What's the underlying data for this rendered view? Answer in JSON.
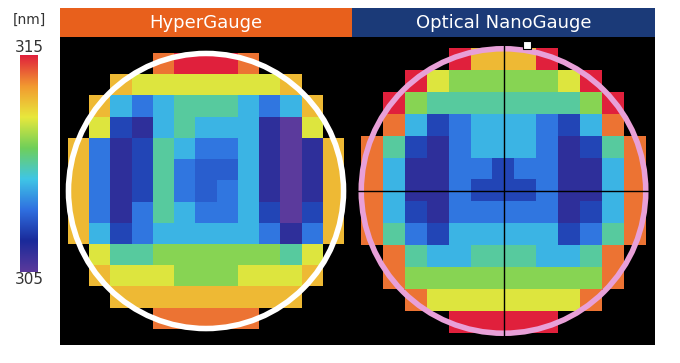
{
  "chart_data": [
    {
      "type": "heatmap",
      "title": "HyperGauge",
      "color": "#e8601c",
      "cells": [
        [
          null,
          null,
          null,
          null,
          314,
          315,
          315,
          315,
          314,
          null,
          null,
          null,
          null
        ],
        [
          null,
          null,
          313,
          312,
          312,
          312,
          312,
          312,
          312,
          312,
          313,
          null,
          null
        ],
        [
          null,
          313,
          309,
          308,
          309,
          310,
          310,
          310,
          309,
          308,
          309,
          313,
          null
        ],
        [
          null,
          312,
          307,
          306,
          309,
          310,
          309,
          309,
          309,
          306,
          305,
          312,
          null
        ],
        [
          313,
          308,
          306,
          307,
          310,
          309,
          308,
          308,
          309,
          306,
          305,
          306,
          313
        ],
        [
          313,
          308,
          306,
          307,
          310,
          308,
          307.5,
          307.5,
          309,
          306,
          305,
          306,
          313
        ],
        [
          313,
          308,
          306,
          307,
          310,
          308,
          307.5,
          308,
          309,
          306,
          305,
          306,
          313
        ],
        [
          313,
          308,
          306,
          308,
          310,
          309,
          308,
          308,
          309,
          307,
          305,
          307,
          313
        ],
        [
          313,
          309,
          307,
          308,
          309,
          309,
          309,
          309,
          309,
          308,
          306,
          308,
          313
        ],
        [
          null,
          312,
          310,
          310,
          311,
          311,
          311,
          311,
          311,
          311,
          310,
          312,
          null
        ],
        [
          null,
          313,
          312,
          312,
          312,
          311,
          311,
          311,
          312,
          312,
          312,
          313,
          null
        ],
        [
          null,
          null,
          313,
          313,
          313,
          313,
          313,
          313,
          313,
          313,
          313,
          null,
          null
        ],
        [
          null,
          null,
          null,
          null,
          314,
          314,
          314,
          314,
          314,
          null,
          null,
          null,
          null
        ]
      ]
    },
    {
      "type": "heatmap",
      "title": "Optical NanoGauge",
      "color": "#1b3a78",
      "cells": [
        [
          null,
          null,
          null,
          null,
          315,
          313,
          313,
          313,
          315,
          null,
          null,
          null,
          null
        ],
        [
          null,
          null,
          315,
          312,
          311,
          311,
          311,
          311,
          311,
          312,
          315,
          null,
          null
        ],
        [
          null,
          315,
          311,
          310,
          310,
          310,
          310,
          310,
          310,
          310,
          311,
          315,
          null
        ],
        [
          null,
          314,
          309,
          307,
          308,
          309,
          309,
          309,
          308,
          307,
          309,
          314,
          null
        ],
        [
          314,
          310,
          307,
          306,
          308,
          309,
          309,
          309,
          308,
          306,
          307,
          310,
          314
        ],
        [
          314,
          309,
          306,
          306,
          308,
          308,
          307,
          308,
          308,
          306,
          306,
          309,
          314
        ],
        [
          314,
          309,
          306,
          306,
          308,
          307,
          307,
          307,
          308,
          306,
          306,
          309,
          314
        ],
        [
          314,
          309,
          307,
          306,
          308,
          308,
          308,
          308,
          308,
          306,
          307,
          309,
          314
        ],
        [
          314,
          310,
          308,
          307,
          309,
          309,
          309,
          309,
          309,
          307,
          308,
          310,
          314
        ],
        [
          null,
          314,
          310,
          309,
          309,
          310,
          310,
          310,
          309,
          309,
          310,
          314,
          null
        ],
        [
          null,
          314,
          311,
          311,
          311,
          311,
          311,
          311,
          311,
          311,
          311,
          314,
          null
        ],
        [
          null,
          null,
          314,
          312,
          312,
          312,
          312,
          312,
          312,
          312,
          314,
          null,
          null
        ],
        [
          null,
          null,
          null,
          null,
          315,
          315,
          315,
          315,
          315,
          null,
          null,
          null,
          null
        ]
      ]
    }
  ],
  "colorbar": {
    "label": "[nm]",
    "range": [
      305,
      315
    ],
    "ticks": [
      305,
      315
    ]
  }
}
